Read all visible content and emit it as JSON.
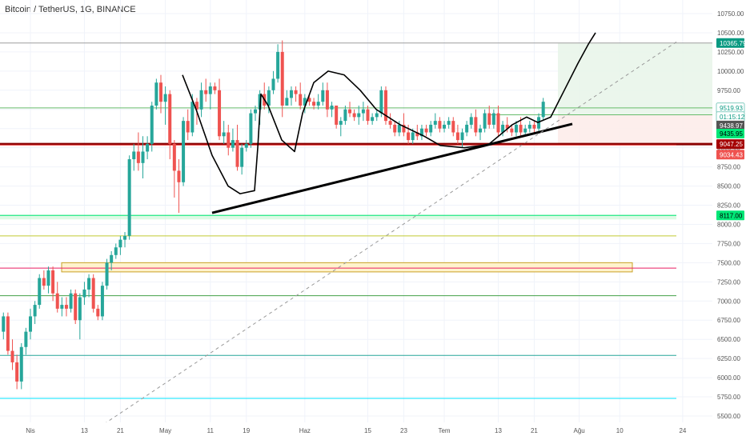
{
  "chart_title": "Bitcoin / TetherUS, 1G, BINANCE",
  "chart_data": {
    "type": "candlestick",
    "symbol": "Bitcoin / TetherUS",
    "interval": "1G",
    "exchange": "BINANCE",
    "ylim": [
      5450,
      10900
    ],
    "y_ticks": [
      "10750.00",
      "10500.00",
      "10250.00",
      "10000.00",
      "9750.00",
      "9500.00",
      "9250.00",
      "9000.00",
      "8750.00",
      "8500.00",
      "8250.00",
      "8000.00",
      "7750.00",
      "7500.00",
      "7250.00",
      "7000.00",
      "6750.00",
      "6500.00",
      "6250.00",
      "6000.00",
      "5750.00",
      "5500.00"
    ],
    "x_ticks": [
      "Nis",
      "13",
      "21",
      "May",
      "11",
      "19",
      "Haz",
      "15",
      "23",
      "Tem",
      "13",
      "21",
      "Ağu",
      "10",
      "24"
    ],
    "x_tick_days": [
      0,
      12,
      20,
      30,
      40,
      48,
      61,
      75,
      83,
      92,
      104,
      112,
      122,
      131,
      145
    ],
    "candles_ohlc": [
      [
        6600,
        6850,
        6500,
        6800
      ],
      [
        6800,
        6850,
        6300,
        6350
      ],
      [
        6350,
        6500,
        6100,
        6200
      ],
      [
        6200,
        6300,
        5850,
        5950
      ],
      [
        5950,
        6450,
        5850,
        6400
      ],
      [
        6400,
        6650,
        6300,
        6600
      ],
      [
        6600,
        6900,
        6500,
        6800
      ],
      [
        6800,
        7000,
        6700,
        6950
      ],
      [
        6950,
        7350,
        6900,
        7300
      ],
      [
        7300,
        7400,
        7150,
        7200
      ],
      [
        7200,
        7450,
        7100,
        7400
      ],
      [
        7400,
        7450,
        7000,
        7100
      ],
      [
        7100,
        7250,
        6850,
        6900
      ],
      [
        6900,
        7050,
        6800,
        6950
      ],
      [
        6950,
        7050,
        6800,
        6900
      ],
      [
        6900,
        7150,
        6850,
        7100
      ],
      [
        7100,
        7150,
        6700,
        6750
      ],
      [
        6750,
        7100,
        6500,
        7050
      ],
      [
        7050,
        7250,
        6950,
        7150
      ],
      [
        7150,
        7350,
        7050,
        7300
      ],
      [
        7300,
        7350,
        6850,
        6900
      ],
      [
        6900,
        6950,
        6750,
        6800
      ],
      [
        6800,
        7250,
        6750,
        7200
      ],
      [
        7200,
        7550,
        7150,
        7500
      ],
      [
        7500,
        7650,
        7400,
        7600
      ],
      [
        7600,
        7750,
        7550,
        7700
      ],
      [
        7700,
        7850,
        7600,
        7800
      ],
      [
        7800,
        7900,
        7700,
        7850
      ],
      [
        7850,
        8900,
        7800,
        8850
      ],
      [
        8850,
        9050,
        8700,
        8950
      ],
      [
        8950,
        9200,
        8700,
        8800
      ],
      [
        8800,
        9150,
        8600,
        8950
      ],
      [
        8950,
        9150,
        8850,
        9050
      ],
      [
        9050,
        9600,
        8950,
        9550
      ],
      [
        9550,
        9900,
        9500,
        9850
      ],
      [
        9850,
        9950,
        9450,
        9600
      ],
      [
        9600,
        9800,
        9300,
        9700
      ],
      [
        9700,
        9750,
        8850,
        9050
      ],
      [
        9050,
        9100,
        8350,
        8700
      ],
      [
        8700,
        8850,
        8150,
        8550
      ],
      [
        8550,
        9400,
        8500,
        9350
      ],
      [
        9350,
        9500,
        9100,
        9200
      ],
      [
        9200,
        9700,
        9150,
        9600
      ],
      [
        9600,
        9650,
        9300,
        9500
      ],
      [
        9500,
        9850,
        9400,
        9750
      ],
      [
        9750,
        9900,
        9600,
        9700
      ],
      [
        9700,
        9850,
        9500,
        9800
      ],
      [
        9800,
        9850,
        9700,
        9750
      ],
      [
        9750,
        9900,
        9100,
        9150
      ],
      [
        9150,
        9350,
        9050,
        9200
      ],
      [
        9200,
        9300,
        8900,
        9000
      ],
      [
        9000,
        9250,
        8950,
        9100
      ],
      [
        9100,
        9300,
        8700,
        8750
      ],
      [
        8750,
        9050,
        8650,
        9000
      ],
      [
        9000,
        9100,
        8950,
        9050
      ],
      [
        9050,
        9500,
        9000,
        9450
      ],
      [
        9450,
        9550,
        9350,
        9500
      ],
      [
        9500,
        9750,
        9300,
        9700
      ],
      [
        9700,
        9850,
        9500,
        9550
      ],
      [
        9550,
        9800,
        9450,
        9750
      ],
      [
        9750,
        10000,
        9700,
        9900
      ],
      [
        9900,
        10350,
        9850,
        10250
      ],
      [
        10250,
        10400,
        9400,
        9550
      ],
      [
        9550,
        9750,
        9550,
        9650
      ],
      [
        9650,
        9800,
        9550,
        9750
      ],
      [
        9750,
        9800,
        9600,
        9700
      ],
      [
        9700,
        9850,
        9500,
        9550
      ],
      [
        9550,
        9700,
        9450,
        9650
      ],
      [
        9650,
        9700,
        9550,
        9600
      ],
      [
        9600,
        9650,
        9500,
        9550
      ],
      [
        9550,
        9700,
        9500,
        9600
      ],
      [
        9600,
        9850,
        9550,
        9750
      ],
      [
        9750,
        9850,
        9400,
        9500
      ],
      [
        9500,
        9600,
        9400,
        9550
      ],
      [
        9550,
        9550,
        9250,
        9300
      ],
      [
        9300,
        9400,
        9150,
        9350
      ],
      [
        9350,
        9550,
        9300,
        9500
      ],
      [
        9500,
        9600,
        9400,
        9450
      ],
      [
        9450,
        9500,
        9350,
        9400
      ],
      [
        9400,
        9550,
        9300,
        9450
      ],
      [
        9450,
        9600,
        9350,
        9500
      ],
      [
        9500,
        9550,
        9300,
        9350
      ],
      [
        9350,
        9450,
        9300,
        9400
      ],
      [
        9400,
        9500,
        9350,
        9450
      ],
      [
        9450,
        9800,
        9400,
        9750
      ],
      [
        9750,
        9800,
        9300,
        9350
      ],
      [
        9350,
        9450,
        9250,
        9300
      ],
      [
        9300,
        9350,
        9150,
        9200
      ],
      [
        9200,
        9350,
        9150,
        9300
      ],
      [
        9300,
        9450,
        9150,
        9200
      ],
      [
        9200,
        9300,
        9050,
        9100
      ],
      [
        9100,
        9250,
        9050,
        9200
      ],
      [
        9200,
        9300,
        9100,
        9150
      ],
      [
        9150,
        9300,
        9100,
        9250
      ],
      [
        9250,
        9300,
        9150,
        9200
      ],
      [
        9200,
        9350,
        9150,
        9300
      ],
      [
        9300,
        9450,
        9250,
        9350
      ],
      [
        9350,
        9400,
        9200,
        9250
      ],
      [
        9250,
        9350,
        9200,
        9300
      ],
      [
        9300,
        9400,
        9250,
        9350
      ],
      [
        9350,
        9400,
        9150,
        9200
      ],
      [
        9200,
        9300,
        9050,
        9100
      ],
      [
        9100,
        9250,
        9000,
        9200
      ],
      [
        9200,
        9350,
        9150,
        9300
      ],
      [
        9300,
        9450,
        9250,
        9400
      ],
      [
        9400,
        9500,
        9150,
        9200
      ],
      [
        9200,
        9300,
        9100,
        9250
      ],
      [
        9250,
        9500,
        9200,
        9450
      ],
      [
        9450,
        9550,
        9250,
        9300
      ],
      [
        9300,
        9500,
        9250,
        9450
      ],
      [
        9450,
        9550,
        9150,
        9200
      ],
      [
        9200,
        9350,
        9150,
        9300
      ],
      [
        9300,
        9400,
        9200,
        9250
      ],
      [
        9250,
        9300,
        9150,
        9200
      ],
      [
        9200,
        9350,
        9150,
        9300
      ],
      [
        9300,
        9400,
        9150,
        9200
      ],
      [
        9200,
        9300,
        9150,
        9250
      ],
      [
        9250,
        9350,
        9200,
        9300
      ],
      [
        9300,
        9350,
        9200,
        9250
      ],
      [
        9250,
        9450,
        9200,
        9400
      ],
      [
        9400,
        9650,
        9350,
        9600
      ]
    ],
    "horizontal_lines": [
      {
        "price": 10365.79,
        "color": "#9e9e9e"
      },
      {
        "price": 9519.93,
        "color": "#66bb6a"
      },
      {
        "price": 9047.25,
        "color": "#8b0000"
      },
      {
        "price": 9034.43,
        "color": "#ef5350"
      },
      {
        "price": 8117.0,
        "color": "#00e676"
      },
      {
        "price": 7850,
        "color": "#c0ca33"
      },
      {
        "price": 7430,
        "color": "#e91e63"
      },
      {
        "price": 7070,
        "color": "#43a047"
      },
      {
        "price": 6290,
        "color": "#26a69a"
      },
      {
        "price": 5730,
        "color": "#00e5ff"
      }
    ],
    "price_labels": [
      {
        "text": "10365.79",
        "price": 10365.79,
        "bg": "#089981",
        "fg": "#ffffff"
      },
      {
        "text": "9519.93",
        "price": 9519.93,
        "bg": "#ffffff",
        "fg": "#089981"
      },
      {
        "text": "01:15:12",
        "price": 9405,
        "bg": "#ffffff",
        "fg": "#089981"
      },
      {
        "text": "9438.97",
        "price": 9290,
        "bg": "#555555",
        "fg": "#ffffff"
      },
      {
        "text": "9435.95",
        "price": 9185,
        "bg": "#00e676",
        "fg": "#000000"
      },
      {
        "text": "9047.25",
        "price": 9047.25,
        "bg": "#a50000",
        "fg": "#ffffff"
      },
      {
        "text": "9034.43",
        "price": 8910,
        "bg": "#ef5350",
        "fg": "#ffffff"
      },
      {
        "text": "8117.00",
        "price": 8117.0,
        "bg": "#00e676",
        "fg": "#000000"
      }
    ],
    "colors": {
      "up": "#26a69a",
      "down": "#ef5350",
      "grid": "#f0f3fa"
    }
  }
}
